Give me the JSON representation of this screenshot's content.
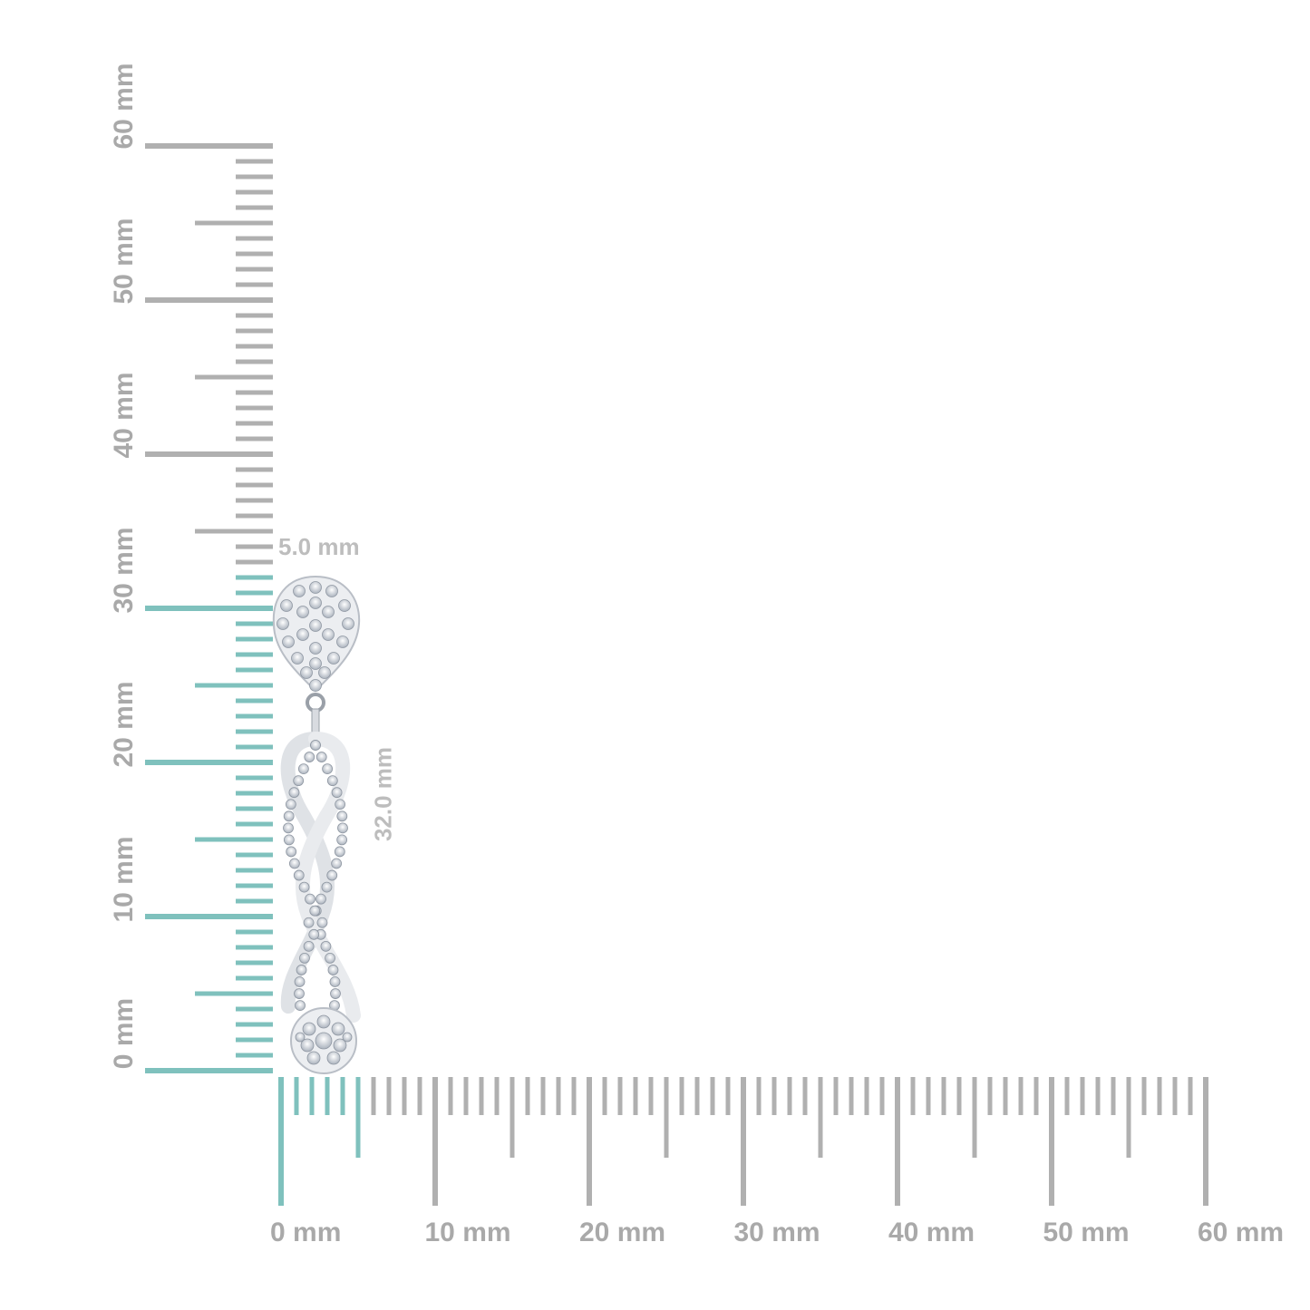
{
  "colors": {
    "tick": "#b0b0b0",
    "highlight": "#7fc1bd",
    "label": "#a9a9a9",
    "metal": "#e6e7ea",
    "stone": "#c9ced6"
  },
  "horizontal_ruler": {
    "min_mm": 0,
    "max_mm": 60,
    "highlight_to_mm": 5,
    "labels": [
      "0 mm",
      "10 mm",
      "20 mm",
      "30 mm",
      "40 mm",
      "50 mm",
      "60 mm"
    ]
  },
  "vertical_ruler": {
    "min_mm": 0,
    "max_mm": 60,
    "highlight_to_mm": 32,
    "labels": [
      "0 mm",
      "10 mm",
      "20 mm",
      "30 mm",
      "40 mm",
      "50 mm",
      "60 mm"
    ]
  },
  "dimensions": {
    "width": "5.0 mm",
    "height": "32.0 mm"
  },
  "product": {
    "icon": "infinity-drop-earring"
  }
}
